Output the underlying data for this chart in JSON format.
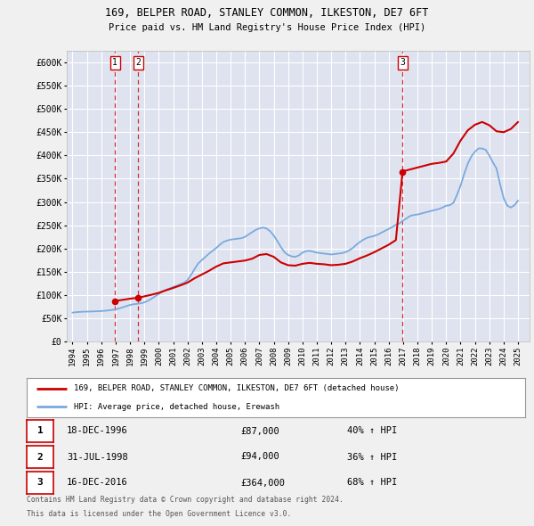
{
  "title1": "169, BELPER ROAD, STANLEY COMMON, ILKESTON, DE7 6FT",
  "title2": "Price paid vs. HM Land Registry's House Price Index (HPI)",
  "ylabel_ticks": [
    "£0",
    "£50K",
    "£100K",
    "£150K",
    "£200K",
    "£250K",
    "£300K",
    "£350K",
    "£400K",
    "£450K",
    "£500K",
    "£550K",
    "£600K"
  ],
  "ytick_vals": [
    0,
    50000,
    100000,
    150000,
    200000,
    250000,
    300000,
    350000,
    400000,
    450000,
    500000,
    550000,
    600000
  ],
  "ylim": [
    0,
    625000
  ],
  "xlim_start": 1993.6,
  "xlim_end": 2025.8,
  "sale_dates": [
    1996.96,
    1998.58,
    2016.96
  ],
  "sale_prices": [
    87000,
    94000,
    364000
  ],
  "sale_labels": [
    "1",
    "2",
    "3"
  ],
  "legend_label_red": "169, BELPER ROAD, STANLEY COMMON, ILKESTON, DE7 6FT (detached house)",
  "legend_label_blue": "HPI: Average price, detached house, Erewash",
  "table_rows": [
    [
      "1",
      "18-DEC-1996",
      "£87,000",
      "40% ↑ HPI"
    ],
    [
      "2",
      "31-JUL-1998",
      "£94,000",
      "36% ↑ HPI"
    ],
    [
      "3",
      "16-DEC-2016",
      "£364,000",
      "68% ↑ HPI"
    ]
  ],
  "footnote1": "Contains HM Land Registry data © Crown copyright and database right 2024.",
  "footnote2": "This data is licensed under the Open Government Licence v3.0.",
  "bg_color": "#f0f0f0",
  "plot_bg_color": "#dfe3f0",
  "grid_color": "#ffffff",
  "red_color": "#cc0000",
  "blue_color": "#7aaadd",
  "hpi_data_x": [
    1994.0,
    1994.25,
    1994.5,
    1994.75,
    1995.0,
    1995.25,
    1995.5,
    1995.75,
    1996.0,
    1996.25,
    1996.5,
    1996.75,
    1997.0,
    1997.25,
    1997.5,
    1997.75,
    1998.0,
    1998.25,
    1998.5,
    1998.75,
    1999.0,
    1999.25,
    1999.5,
    1999.75,
    2000.0,
    2000.25,
    2000.5,
    2000.75,
    2001.0,
    2001.25,
    2001.5,
    2001.75,
    2002.0,
    2002.25,
    2002.5,
    2002.75,
    2003.0,
    2003.25,
    2003.5,
    2003.75,
    2004.0,
    2004.25,
    2004.5,
    2004.75,
    2005.0,
    2005.25,
    2005.5,
    2005.75,
    2006.0,
    2006.25,
    2006.5,
    2006.75,
    2007.0,
    2007.25,
    2007.5,
    2007.75,
    2008.0,
    2008.25,
    2008.5,
    2008.75,
    2009.0,
    2009.25,
    2009.5,
    2009.75,
    2010.0,
    2010.25,
    2010.5,
    2010.75,
    2011.0,
    2011.25,
    2011.5,
    2011.75,
    2012.0,
    2012.25,
    2012.5,
    2012.75,
    2013.0,
    2013.25,
    2013.5,
    2013.75,
    2014.0,
    2014.25,
    2014.5,
    2014.75,
    2015.0,
    2015.25,
    2015.5,
    2015.75,
    2016.0,
    2016.25,
    2016.5,
    2016.75,
    2017.0,
    2017.25,
    2017.5,
    2017.75,
    2018.0,
    2018.25,
    2018.5,
    2018.75,
    2019.0,
    2019.25,
    2019.5,
    2019.75,
    2020.0,
    2020.25,
    2020.5,
    2020.75,
    2021.0,
    2021.25,
    2021.5,
    2021.75,
    2022.0,
    2022.25,
    2022.5,
    2022.75,
    2023.0,
    2023.25,
    2023.5,
    2023.75,
    2024.0,
    2024.25,
    2024.5,
    2024.75,
    2025.0
  ],
  "hpi_data_y": [
    62000,
    63000,
    63500,
    64000,
    64200,
    64400,
    64700,
    65000,
    65400,
    66000,
    66800,
    67800,
    69000,
    71000,
    73500,
    76000,
    78500,
    80000,
    81000,
    82000,
    84000,
    87500,
    92000,
    97000,
    102000,
    107000,
    111000,
    114000,
    117000,
    120000,
    123000,
    126000,
    132000,
    143000,
    156000,
    168000,
    175000,
    182000,
    189000,
    195000,
    201000,
    208000,
    214000,
    217000,
    219000,
    220000,
    221000,
    222000,
    225000,
    230000,
    235000,
    240000,
    243000,
    245000,
    243000,
    237000,
    228000,
    216000,
    203000,
    192000,
    186000,
    183000,
    182000,
    185000,
    191000,
    194000,
    195000,
    193000,
    191000,
    190000,
    189000,
    188000,
    187000,
    188000,
    189000,
    190000,
    192000,
    196000,
    201000,
    208000,
    214000,
    219000,
    223000,
    225000,
    227000,
    230000,
    234000,
    238000,
    242000,
    246000,
    251000,
    254000,
    260000,
    265000,
    270000,
    272000,
    273000,
    275000,
    277000,
    279000,
    281000,
    283000,
    285000,
    288000,
    292000,
    293000,
    298000,
    315000,
    335000,
    360000,
    382000,
    398000,
    408000,
    415000,
    415000,
    412000,
    400000,
    385000,
    372000,
    338000,
    308000,
    292000,
    288000,
    293000,
    303000
  ],
  "property_line_x": [
    1996.96,
    1997.5,
    1998.0,
    1998.58,
    1999.0,
    1999.5,
    2000.0,
    2000.5,
    2001.0,
    2001.5,
    2002.0,
    2002.5,
    2003.0,
    2003.5,
    2004.0,
    2004.5,
    2005.0,
    2005.5,
    2006.0,
    2006.5,
    2007.0,
    2007.5,
    2008.0,
    2008.5,
    2009.0,
    2009.5,
    2010.0,
    2010.5,
    2011.0,
    2011.5,
    2012.0,
    2012.5,
    2013.0,
    2013.5,
    2014.0,
    2014.5,
    2015.0,
    2015.5,
    2016.0,
    2016.5,
    2016.96,
    2017.0,
    2017.5,
    2018.0,
    2018.5,
    2019.0,
    2019.5,
    2020.0,
    2020.5,
    2021.0,
    2021.5,
    2022.0,
    2022.5,
    2023.0,
    2023.5,
    2024.0,
    2024.5,
    2025.0
  ],
  "property_line_y": [
    87000,
    89500,
    92000,
    94000,
    97000,
    100500,
    104500,
    110000,
    115000,
    120500,
    126500,
    136000,
    144000,
    152000,
    161000,
    168000,
    170000,
    172000,
    174000,
    178000,
    186000,
    188000,
    182000,
    170000,
    164000,
    163000,
    167000,
    169000,
    167000,
    166000,
    164000,
    165000,
    167000,
    172000,
    179000,
    185000,
    192000,
    200000,
    208000,
    218000,
    364000,
    366000,
    370000,
    374000,
    378000,
    382000,
    384000,
    387000,
    404000,
    432000,
    454000,
    466000,
    472000,
    465000,
    452000,
    450000,
    457000,
    472000
  ],
  "xtick_years": [
    1994,
    1995,
    1996,
    1997,
    1998,
    1999,
    2000,
    2001,
    2002,
    2003,
    2004,
    2005,
    2006,
    2007,
    2008,
    2009,
    2010,
    2011,
    2012,
    2013,
    2014,
    2015,
    2016,
    2017,
    2018,
    2019,
    2020,
    2021,
    2022,
    2023,
    2024,
    2025
  ]
}
